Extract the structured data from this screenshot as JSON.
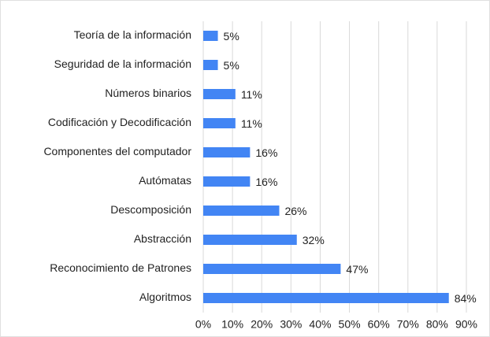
{
  "chart_data": {
    "type": "bar",
    "orientation": "horizontal",
    "categories": [
      "Teoría de la información",
      "Seguridad de la información",
      "Números binarios",
      "Codificación y Decodificación",
      "Componentes del computador",
      "Autómatas",
      "Descomposición",
      "Abstracción",
      "Reconocimiento de Patrones",
      "Algoritmos"
    ],
    "values": [
      5,
      5,
      11,
      11,
      16,
      16,
      26,
      32,
      47,
      84
    ],
    "value_labels": [
      "5%",
      "5%",
      "11%",
      "11%",
      "16%",
      "16%",
      "26%",
      "32%",
      "47%",
      "84%"
    ],
    "color": "#4285f4",
    "xlim": [
      0,
      90
    ],
    "xticks": [
      {
        "value": 0,
        "label": "0%"
      },
      {
        "value": 10,
        "label": "10%"
      },
      {
        "value": 20,
        "label": "20%"
      },
      {
        "value": 30,
        "label": "30%"
      },
      {
        "value": 40,
        "label": "40%"
      },
      {
        "value": 50,
        "label": "50%"
      },
      {
        "value": 60,
        "label": "60%"
      },
      {
        "value": 70,
        "label": "70%"
      },
      {
        "value": 80,
        "label": "80%"
      },
      {
        "value": 90,
        "label": "90%"
      }
    ],
    "grid": true
  }
}
